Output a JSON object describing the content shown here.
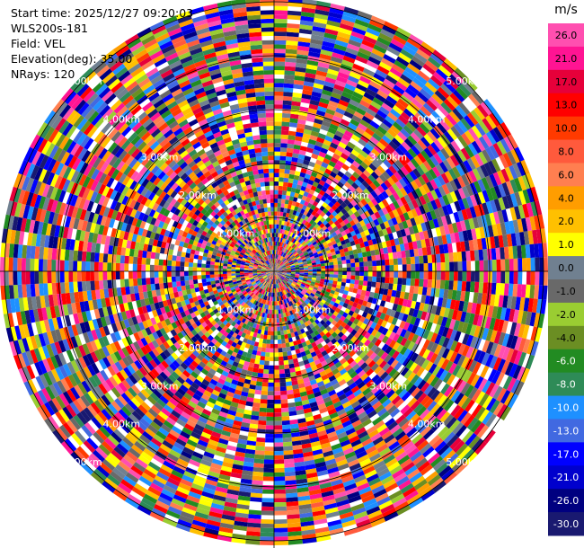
{
  "header": {
    "start_time": "Start time: 2025/12/27 09:20:03",
    "site": "WLS200s-181",
    "field": "Field: VEL",
    "elevation": "Elevation(deg): 35.00",
    "nrays": "NRays: 120"
  },
  "chart_data": {
    "type": "ppi",
    "field": "VEL",
    "units": "m/s",
    "nrays": 120,
    "elevation_deg": 35.0,
    "max_range_km": 5.0,
    "range_ring_labels": [
      "1.00km",
      "2.00km",
      "3.00km",
      "4.00km",
      "5.00km"
    ],
    "colorbar": {
      "label": "m/s",
      "ticks": [
        "26.0",
        "21.0",
        "17.0",
        "13.0",
        "10.0",
        "8.0",
        "6.0",
        "4.0",
        "2.0",
        "1.0",
        "0.0",
        "-1.0",
        "-2.0",
        "-4.0",
        "-6.0",
        "-8.0",
        "-10.0",
        "-13.0",
        "-17.0",
        "-21.0",
        "-26.0",
        "-30.0"
      ],
      "colors": [
        "#ff4fb0",
        "#ff1493",
        "#e6003a",
        "#ff0000",
        "#ff3a00",
        "#ff5a3c",
        "#ff7f50",
        "#ff9d00",
        "#ffc000",
        "#ffff00",
        "#708090",
        "#696969",
        "#9acd32",
        "#6b8e23",
        "#228b22",
        "#2e8b57",
        "#1e90ff",
        "#4169e1",
        "#0000ff",
        "#0000cd",
        "#000080",
        "#191970"
      ]
    }
  }
}
